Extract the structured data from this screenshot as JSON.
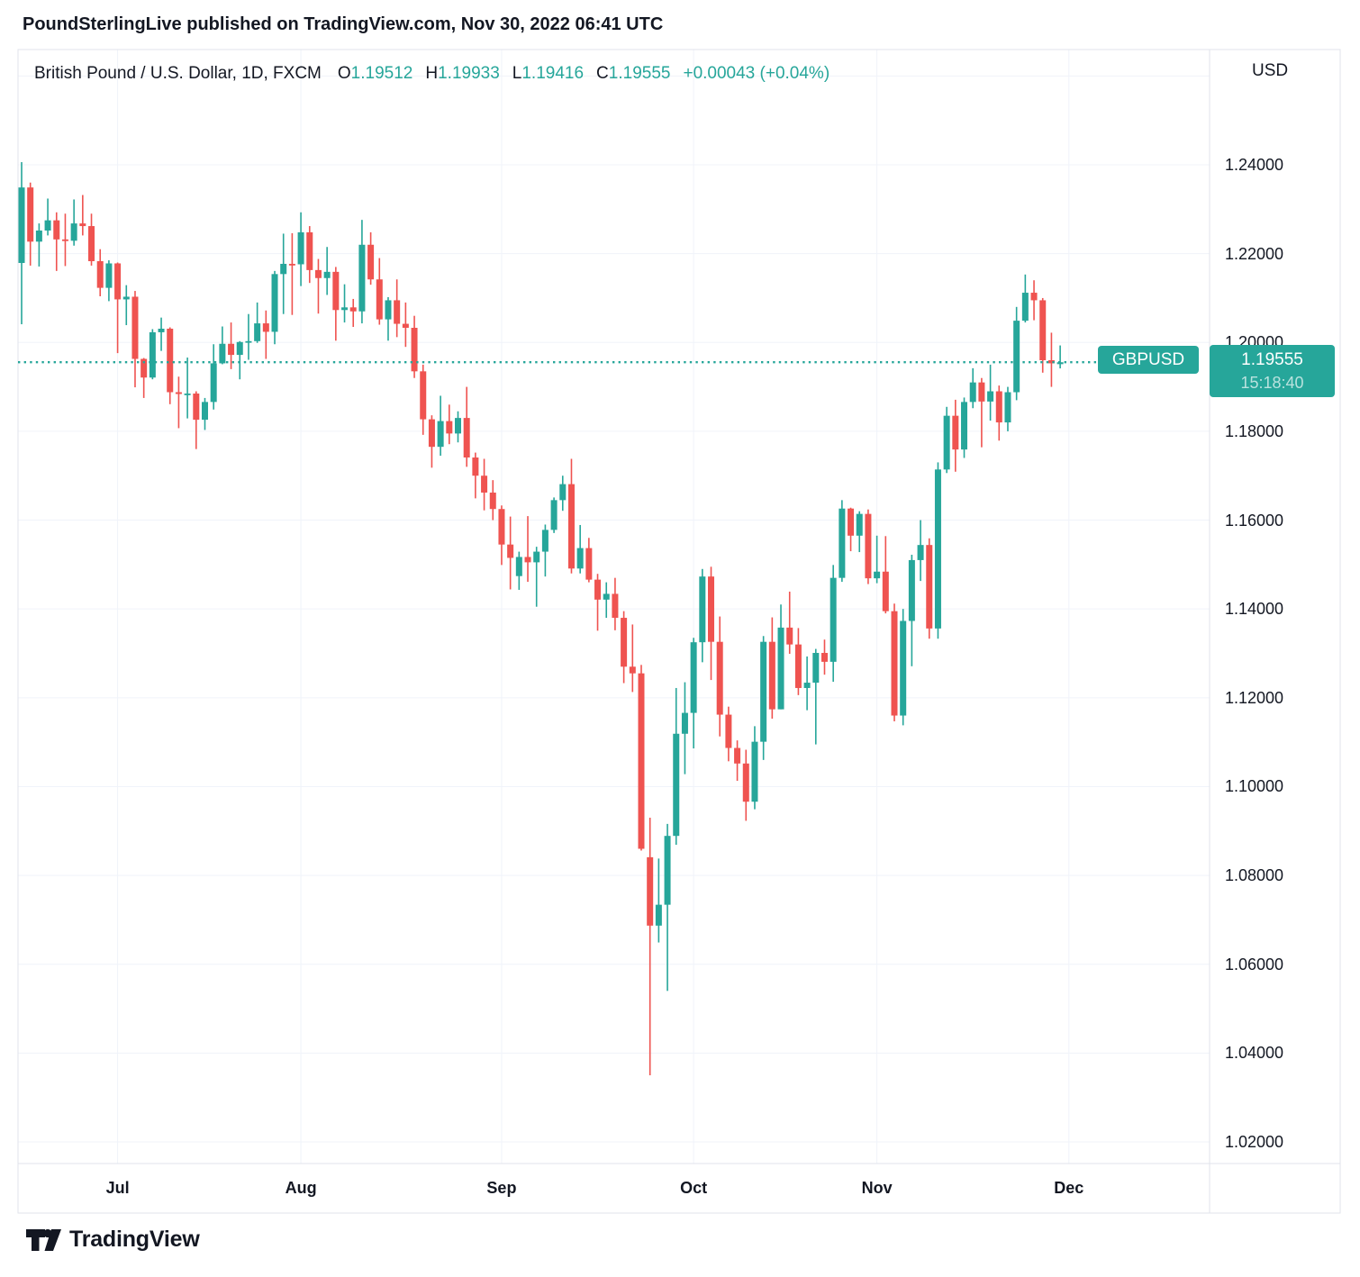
{
  "header": {
    "attribution": "PoundSterlingLive published on TradingView.com, Nov 30, 2022 06:41 UTC"
  },
  "legend": {
    "title": "British Pound / U.S. Dollar, 1D, FXCM",
    "open_label": "O",
    "open": "1.19512",
    "high_label": "H",
    "high": "1.19933",
    "low_label": "L",
    "low": "1.19416",
    "close_label": "C",
    "close": "1.19555",
    "change": "+0.00043 (+0.04%)"
  },
  "price_axis": {
    "currency": "USD",
    "ticks": [
      1.24,
      1.22,
      1.2,
      1.18,
      1.16,
      1.14,
      1.12,
      1.1,
      1.08,
      1.06,
      1.04,
      1.02
    ],
    "decimals": 5
  },
  "time_axis": {
    "months": [
      {
        "label": "Jul",
        "index": 11
      },
      {
        "label": "Aug",
        "index": 32
      },
      {
        "label": "Sep",
        "index": 55
      },
      {
        "label": "Oct",
        "index": 77
      },
      {
        "label": "Nov",
        "index": 98
      },
      {
        "label": "Dec",
        "index": 120
      }
    ]
  },
  "price_line": {
    "symbol": "GBPUSD",
    "price": "1.19555",
    "value": 1.19555,
    "countdown": "15:18:40"
  },
  "footer": {
    "brand": "TradingView"
  },
  "colors": {
    "up": "#26a69a",
    "down": "#ef5350",
    "accent": "#26a69a",
    "text": "#131722",
    "grid": "#f0f3fa",
    "border": "#e0e3eb"
  },
  "chart_data": {
    "type": "candlestick",
    "symbol": "GBPUSD",
    "title": "British Pound / U.S. Dollar",
    "timeframe": "1D",
    "exchange": "FXCM",
    "grid": true,
    "ylim": [
      1.015,
      1.266
    ],
    "price_step": 0.02,
    "columns": [
      "date",
      "open",
      "high",
      "low",
      "close"
    ],
    "candles": [
      [
        "2022-06-16",
        1.2179,
        1.2406,
        1.2041,
        1.2349
      ],
      [
        "2022-06-17",
        1.2349,
        1.236,
        1.2173,
        1.2227
      ],
      [
        "2022-06-20",
        1.2227,
        1.2268,
        1.2171,
        1.2252
      ],
      [
        "2022-06-21",
        1.2252,
        1.2324,
        1.2241,
        1.2275
      ],
      [
        "2022-06-22",
        1.2275,
        1.2293,
        1.2161,
        1.2232
      ],
      [
        "2022-06-23",
        1.2232,
        1.229,
        1.2172,
        1.2229
      ],
      [
        "2022-06-24",
        1.2229,
        1.2322,
        1.2218,
        1.2268
      ],
      [
        "2022-06-27",
        1.2268,
        1.2332,
        1.2241,
        1.2262
      ],
      [
        "2022-06-28",
        1.2262,
        1.229,
        1.2173,
        1.2183
      ],
      [
        "2022-06-29",
        1.2183,
        1.221,
        1.2104,
        1.2123
      ],
      [
        "2022-06-30",
        1.2123,
        1.2185,
        1.2093,
        1.2178
      ],
      [
        "2022-07-01",
        1.2178,
        1.218,
        1.1976,
        1.2097
      ],
      [
        "2022-07-04",
        1.2097,
        1.2129,
        1.2039,
        1.2103
      ],
      [
        "2022-07-05",
        1.2103,
        1.2116,
        1.1899,
        1.1963
      ],
      [
        "2022-07-06",
        1.1963,
        1.1965,
        1.1875,
        1.1921
      ],
      [
        "2022-07-07",
        1.1921,
        1.203,
        1.1917,
        1.2023
      ],
      [
        "2022-07-08",
        1.2023,
        1.2056,
        1.1981,
        1.2031
      ],
      [
        "2022-07-11",
        1.2031,
        1.2034,
        1.1861,
        1.1888
      ],
      [
        "2022-07-12",
        1.1888,
        1.1923,
        1.1807,
        1.1884
      ],
      [
        "2022-07-13",
        1.1884,
        1.1966,
        1.1829,
        1.1885
      ],
      [
        "2022-07-14",
        1.1885,
        1.189,
        1.176,
        1.1826
      ],
      [
        "2022-07-15",
        1.1826,
        1.1875,
        1.1803,
        1.1866
      ],
      [
        "2022-07-18",
        1.1866,
        1.1996,
        1.1849,
        1.1953
      ],
      [
        "2022-07-19",
        1.1953,
        1.2036,
        1.1951,
        1.1997
      ],
      [
        "2022-07-20",
        1.1997,
        1.2045,
        1.194,
        1.1972
      ],
      [
        "2022-07-21",
        1.1972,
        1.2003,
        1.1917,
        1.2001
      ],
      [
        "2022-07-22",
        1.2001,
        1.2064,
        1.1961,
        1.2003
      ],
      [
        "2022-07-25",
        1.2003,
        1.209,
        1.1999,
        1.2043
      ],
      [
        "2022-07-26",
        1.2043,
        1.2072,
        1.1963,
        1.2024
      ],
      [
        "2022-07-27",
        1.2024,
        1.2161,
        1.1996,
        1.2154
      ],
      [
        "2022-07-28",
        1.2154,
        1.2245,
        1.2064,
        1.2177
      ],
      [
        "2022-07-29",
        1.2177,
        1.2246,
        1.2062,
        1.2176
      ],
      [
        "2022-08-01",
        1.2176,
        1.2293,
        1.2127,
        1.2248
      ],
      [
        "2022-08-02",
        1.2248,
        1.2262,
        1.2134,
        1.2163
      ],
      [
        "2022-08-03",
        1.2163,
        1.2188,
        1.2065,
        1.2145
      ],
      [
        "2022-08-04",
        1.2145,
        1.2215,
        1.2107,
        1.2159
      ],
      [
        "2022-08-05",
        1.2159,
        1.217,
        1.2004,
        1.2073
      ],
      [
        "2022-08-08",
        1.2073,
        1.2131,
        1.2045,
        1.2079
      ],
      [
        "2022-08-09",
        1.2079,
        1.2098,
        1.2035,
        1.207
      ],
      [
        "2022-08-10",
        1.207,
        1.2276,
        1.2043,
        1.222
      ],
      [
        "2022-08-11",
        1.222,
        1.2248,
        1.213,
        1.2142
      ],
      [
        "2022-08-12",
        1.2142,
        1.219,
        1.204,
        1.2052
      ],
      [
        "2022-08-15",
        1.2052,
        1.2102,
        1.2004,
        1.2095
      ],
      [
        "2022-08-16",
        1.2095,
        1.2142,
        1.2012,
        1.2042
      ],
      [
        "2022-08-17",
        1.2042,
        1.209,
        1.199,
        1.2033
      ],
      [
        "2022-08-18",
        1.2033,
        1.206,
        1.192,
        1.1935
      ],
      [
        "2022-08-19",
        1.1935,
        1.195,
        1.1792,
        1.1827
      ],
      [
        "2022-08-22",
        1.1827,
        1.1836,
        1.1718,
        1.1765
      ],
      [
        "2022-08-23",
        1.1765,
        1.188,
        1.1745,
        1.1823
      ],
      [
        "2022-08-24",
        1.1823,
        1.186,
        1.1771,
        1.1795
      ],
      [
        "2022-08-25",
        1.1795,
        1.1845,
        1.1775,
        1.183
      ],
      [
        "2022-08-26",
        1.183,
        1.19,
        1.172,
        1.1741
      ],
      [
        "2022-08-29",
        1.1741,
        1.1752,
        1.1649,
        1.17
      ],
      [
        "2022-08-30",
        1.17,
        1.1738,
        1.1622,
        1.1662
      ],
      [
        "2022-08-31",
        1.1662,
        1.169,
        1.16,
        1.1625
      ],
      [
        "2022-09-01",
        1.1625,
        1.1633,
        1.1499,
        1.1545
      ],
      [
        "2022-09-02",
        1.1545,
        1.1608,
        1.1444,
        1.1515
      ],
      [
        "2022-09-05",
        1.1474,
        1.1529,
        1.1443,
        1.1517
      ],
      [
        "2022-09-06",
        1.1517,
        1.1609,
        1.1461,
        1.1505
      ],
      [
        "2022-09-07",
        1.1505,
        1.154,
        1.1405,
        1.1529
      ],
      [
        "2022-09-08",
        1.1529,
        1.159,
        1.1473,
        1.1578
      ],
      [
        "2022-09-09",
        1.1578,
        1.1651,
        1.1571,
        1.1645
      ],
      [
        "2022-09-12",
        1.1645,
        1.17,
        1.1621,
        1.1681
      ],
      [
        "2022-09-13",
        1.1681,
        1.1738,
        1.148,
        1.1491
      ],
      [
        "2022-09-14",
        1.1491,
        1.1589,
        1.148,
        1.1537
      ],
      [
        "2022-09-15",
        1.1537,
        1.156,
        1.146,
        1.1466
      ],
      [
        "2022-09-16",
        1.1466,
        1.1479,
        1.1351,
        1.1421
      ],
      [
        "2022-09-19",
        1.1421,
        1.146,
        1.138,
        1.1434
      ],
      [
        "2022-09-20",
        1.1434,
        1.147,
        1.1352,
        1.138
      ],
      [
        "2022-09-21",
        1.138,
        1.1395,
        1.1233,
        1.127
      ],
      [
        "2022-09-22",
        1.127,
        1.1365,
        1.1213,
        1.1255
      ],
      [
        "2022-09-23",
        1.1255,
        1.1274,
        1.0856,
        1.086
      ],
      [
        "2022-09-26",
        1.0841,
        1.093,
        1.035,
        1.0687
      ],
      [
        "2022-09-27",
        1.0687,
        1.0838,
        1.0649,
        1.0734
      ],
      [
        "2022-09-28",
        1.0734,
        1.0916,
        1.054,
        1.0889
      ],
      [
        "2022-09-29",
        1.0889,
        1.1222,
        1.0869,
        1.1119
      ],
      [
        "2022-09-30",
        1.1119,
        1.1235,
        1.1028,
        1.1166
      ],
      [
        "2022-10-03",
        1.1166,
        1.1335,
        1.1086,
        1.1325
      ],
      [
        "2022-10-04",
        1.1325,
        1.149,
        1.128,
        1.1473
      ],
      [
        "2022-10-05",
        1.1473,
        1.1495,
        1.124,
        1.1326
      ],
      [
        "2022-10-06",
        1.1326,
        1.1383,
        1.1113,
        1.1162
      ],
      [
        "2022-10-07",
        1.1162,
        1.118,
        1.1057,
        1.1087
      ],
      [
        "2022-10-10",
        1.1087,
        1.1104,
        1.1013,
        1.1052
      ],
      [
        "2022-10-11",
        1.1052,
        1.1083,
        1.0923,
        1.0966
      ],
      [
        "2022-10-12",
        1.0966,
        1.1136,
        1.0949,
        1.1101
      ],
      [
        "2022-10-13",
        1.1101,
        1.1339,
        1.106,
        1.1326
      ],
      [
        "2022-10-14",
        1.1326,
        1.1381,
        1.1153,
        1.1174
      ],
      [
        "2022-10-17",
        1.1174,
        1.141,
        1.1174,
        1.1358
      ],
      [
        "2022-10-18",
        1.1358,
        1.1439,
        1.1299,
        1.132
      ],
      [
        "2022-10-19",
        1.132,
        1.1357,
        1.1206,
        1.1222
      ],
      [
        "2022-10-20",
        1.1222,
        1.1293,
        1.1172,
        1.1234
      ],
      [
        "2022-10-21",
        1.1234,
        1.131,
        1.1095,
        1.1301
      ],
      [
        "2022-10-24",
        1.1301,
        1.1331,
        1.1252,
        1.1281
      ],
      [
        "2022-10-25",
        1.1281,
        1.1499,
        1.1236,
        1.147
      ],
      [
        "2022-10-26",
        1.147,
        1.1645,
        1.1461,
        1.1626
      ],
      [
        "2022-10-27",
        1.1626,
        1.1628,
        1.153,
        1.1565
      ],
      [
        "2022-10-28",
        1.1565,
        1.162,
        1.1528,
        1.1614
      ],
      [
        "2022-10-31",
        1.1614,
        1.1624,
        1.1456,
        1.1469
      ],
      [
        "2022-11-01",
        1.1469,
        1.1565,
        1.1458,
        1.1484
      ],
      [
        "2022-11-02",
        1.1484,
        1.1564,
        1.139,
        1.1395
      ],
      [
        "2022-11-03",
        1.1395,
        1.1412,
        1.1147,
        1.116
      ],
      [
        "2022-11-04",
        1.116,
        1.14,
        1.1138,
        1.1373
      ],
      [
        "2022-11-07",
        1.1373,
        1.1522,
        1.1271,
        1.151
      ],
      [
        "2022-11-08",
        1.151,
        1.16,
        1.1463,
        1.1544
      ],
      [
        "2022-11-09",
        1.1544,
        1.1559,
        1.1333,
        1.1356
      ],
      [
        "2022-11-10",
        1.1356,
        1.173,
        1.1333,
        1.1714
      ],
      [
        "2022-11-11",
        1.1714,
        1.1855,
        1.1706,
        1.1835
      ],
      [
        "2022-11-14",
        1.1835,
        1.1871,
        1.1709,
        1.1759
      ],
      [
        "2022-11-15",
        1.1759,
        1.1876,
        1.174,
        1.1866
      ],
      [
        "2022-11-16",
        1.1866,
        1.1942,
        1.1852,
        1.191
      ],
      [
        "2022-11-17",
        1.191,
        1.192,
        1.1764,
        1.1867
      ],
      [
        "2022-11-18",
        1.1867,
        1.195,
        1.1824,
        1.189
      ],
      [
        "2022-11-21",
        1.189,
        1.1903,
        1.1779,
        1.182
      ],
      [
        "2022-11-22",
        1.182,
        1.19,
        1.18,
        1.1888
      ],
      [
        "2022-11-23",
        1.1888,
        1.208,
        1.187,
        1.2049
      ],
      [
        "2022-11-24",
        1.2049,
        1.2153,
        1.2045,
        1.2112
      ],
      [
        "2022-11-25",
        1.2112,
        1.214,
        1.205,
        1.2095
      ],
      [
        "2022-11-28",
        1.2095,
        1.21,
        1.1932,
        1.196
      ],
      [
        "2022-11-29",
        1.196,
        1.2022,
        1.19,
        1.1953
      ],
      [
        "2022-11-30",
        1.19512,
        1.19933,
        1.19416,
        1.19555
      ]
    ]
  }
}
